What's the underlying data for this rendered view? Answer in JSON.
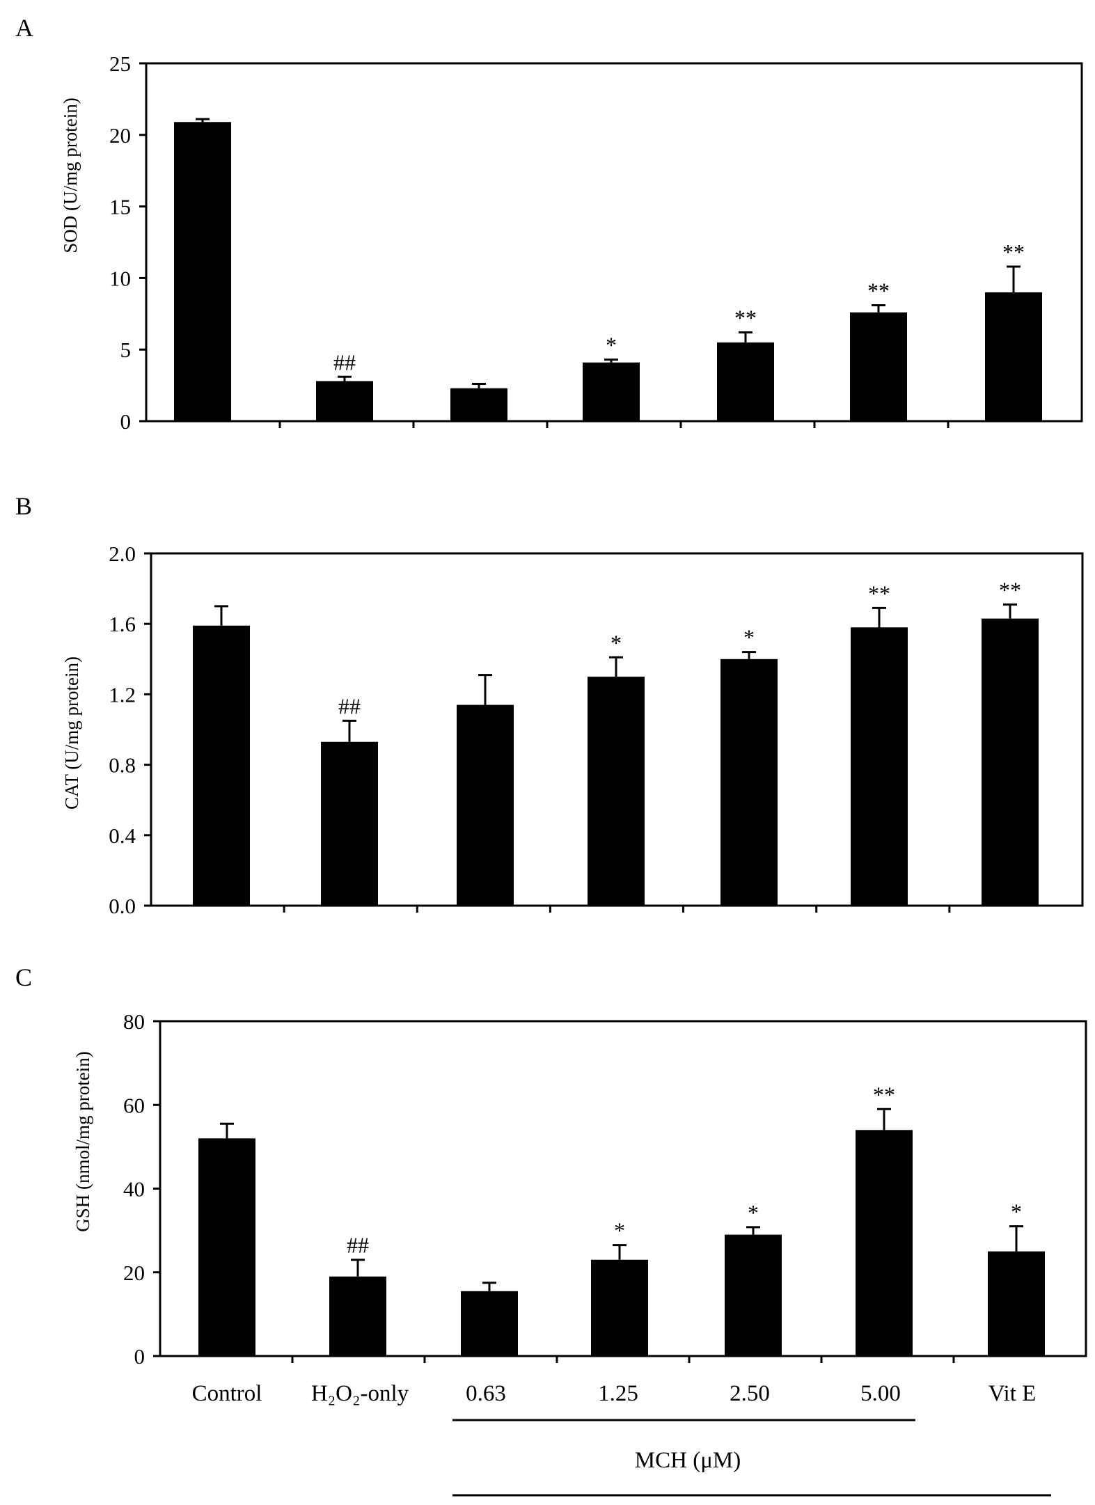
{
  "categories": [
    "Control",
    "H₂O₂-only",
    "0.63",
    "1.25",
    "2.50",
    "5.00",
    "Vit E"
  ],
  "group_label": "MCH (μM)",
  "chart_data": [
    {
      "type": "bar",
      "panel": "A",
      "ylabel": "SOD (U/mg protein)",
      "ylim": [
        0,
        25
      ],
      "yticks": [
        0,
        5,
        10,
        15,
        20,
        25
      ],
      "ytick_labels": [
        "0",
        "5",
        "10",
        "15",
        "20",
        "25"
      ],
      "categories": [
        "Control",
        "H₂O₂-only",
        "0.63",
        "1.25",
        "2.50",
        "5.00",
        "Vit E"
      ],
      "values": [
        20.9,
        2.8,
        2.3,
        4.1,
        5.5,
        7.6,
        9.0
      ],
      "errors": [
        0.2,
        0.3,
        0.3,
        0.2,
        0.7,
        0.5,
        1.8
      ],
      "annotations": [
        "",
        "##",
        "",
        "*",
        "**",
        "**",
        "**"
      ]
    },
    {
      "type": "bar",
      "panel": "B",
      "ylabel": "CAT (U/mg protein)",
      "ylim": [
        0,
        2.0
      ],
      "yticks": [
        0,
        0.4,
        0.8,
        1.2,
        1.6,
        2.0
      ],
      "ytick_labels": [
        "0.0",
        "0.4",
        "0.8",
        "1.2",
        "1.6",
        "2.0"
      ],
      "categories": [
        "Control",
        "H₂O₂-only",
        "0.63",
        "1.25",
        "2.50",
        "5.00",
        "Vit E"
      ],
      "values": [
        1.59,
        0.93,
        1.14,
        1.3,
        1.4,
        1.58,
        1.63
      ],
      "errors": [
        0.11,
        0.12,
        0.17,
        0.11,
        0.04,
        0.11,
        0.08
      ],
      "annotations": [
        "",
        "##",
        "",
        "*",
        "*",
        "**",
        "**"
      ]
    },
    {
      "type": "bar",
      "panel": "C",
      "ylabel": "GSH (nmol/mg protein)",
      "ylim": [
        0,
        80
      ],
      "yticks": [
        0,
        20,
        40,
        60,
        80
      ],
      "ytick_labels": [
        "0",
        "20",
        "40",
        "60",
        "80"
      ],
      "categories": [
        "Control",
        "H₂O₂-only",
        "0.63",
        "1.25",
        "2.50",
        "5.00",
        "Vit E"
      ],
      "values": [
        52,
        19,
        15.5,
        23,
        29,
        54,
        25
      ],
      "errors": [
        3.5,
        4,
        2,
        3.5,
        1.8,
        5,
        6
      ],
      "annotations": [
        "",
        "##",
        "",
        "*",
        "*",
        "**",
        "*"
      ]
    }
  ]
}
